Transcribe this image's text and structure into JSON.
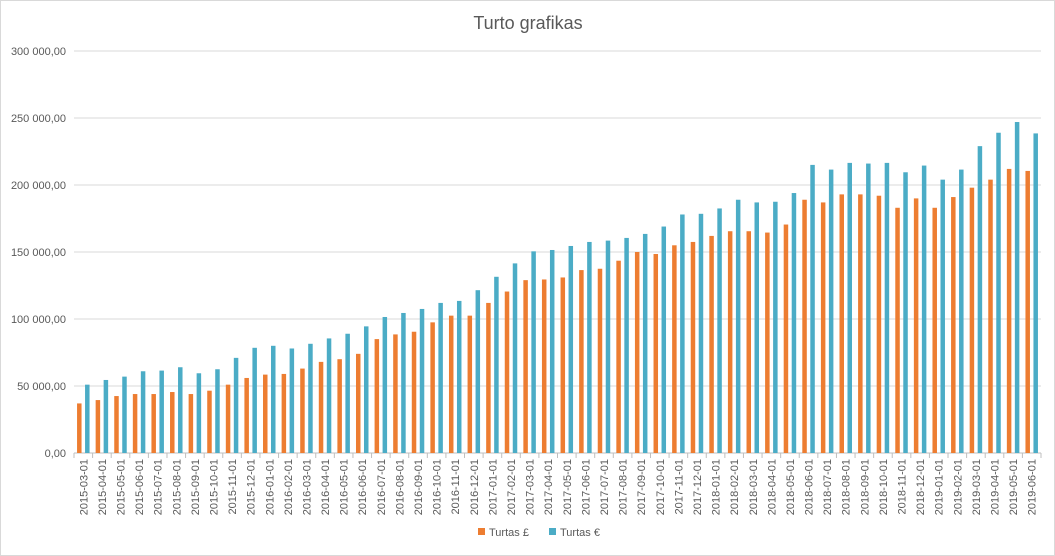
{
  "chart_data": {
    "type": "bar",
    "title": "Turto grafikas",
    "xlabel": "",
    "ylabel": "",
    "ylim": [
      0,
      300000
    ],
    "y_ticks": [
      0,
      50000,
      100000,
      150000,
      200000,
      250000,
      300000
    ],
    "y_tick_labels": [
      "0,00",
      "50 000,00",
      "100 000,00",
      "150 000,00",
      "200 000,00",
      "250 000,00",
      "300 000,00"
    ],
    "grid": true,
    "legend_position": "bottom",
    "categories": [
      "2015-03-01",
      "2015-04-01",
      "2015-05-01",
      "2015-06-01",
      "2015-07-01",
      "2015-08-01",
      "2015-09-01",
      "2015-10-01",
      "2015-11-01",
      "2015-12-01",
      "2016-01-01",
      "2016-02-01",
      "2016-03-01",
      "2016-04-01",
      "2016-05-01",
      "2016-06-01",
      "2016-07-01",
      "2016-08-01",
      "2016-09-01",
      "2016-10-01",
      "2016-11-01",
      "2016-12-01",
      "2017-01-01",
      "2017-02-01",
      "2017-03-01",
      "2017-04-01",
      "2017-05-01",
      "2017-06-01",
      "2017-07-01",
      "2017-08-01",
      "2017-09-01",
      "2017-10-01",
      "2017-11-01",
      "2017-12-01",
      "2018-01-01",
      "2018-02-01",
      "2018-03-01",
      "2018-04-01",
      "2018-05-01",
      "2018-06-01",
      "2018-07-01",
      "2018-08-01",
      "2018-09-01",
      "2018-10-01",
      "2018-11-01",
      "2018-12-01",
      "2019-01-01",
      "2019-02-01",
      "2019-03-01",
      "2019-04-01",
      "2019-05-01",
      "2019-06-01"
    ],
    "series": [
      {
        "name": "Turtas £",
        "color": "#ED7D31",
        "values": [
          37000,
          39500,
          42500,
          44000,
          44000,
          45500,
          44000,
          46500,
          51000,
          56000,
          58500,
          59000,
          63000,
          68000,
          70000,
          74000,
          85000,
          88500,
          90500,
          97500,
          102500,
          102500,
          112000,
          120500,
          129000,
          129500,
          131000,
          136500,
          137500,
          143500,
          150000,
          148500,
          155000,
          157500,
          162000,
          165500,
          165500,
          164500,
          170500,
          189000,
          187000,
          193000,
          193000,
          192000,
          183000,
          190000,
          183000,
          191000,
          198000,
          204000,
          212000,
          210500
        ]
      },
      {
        "name": "Turtas €",
        "color": "#4BACC6",
        "values": [
          51000,
          54500,
          57000,
          61000,
          61500,
          64000,
          59500,
          62500,
          71000,
          78500,
          80000,
          78000,
          81500,
          85500,
          89000,
          94500,
          101500,
          104500,
          107500,
          112000,
          113500,
          121500,
          131500,
          141500,
          150500,
          151500,
          154500,
          157500,
          158500,
          160500,
          163500,
          169000,
          178000,
          178500,
          182500,
          189000,
          187000,
          187500,
          194000,
          215000,
          211500,
          216500,
          216000,
          216500,
          209500,
          214500,
          204000,
          211500,
          229000,
          239000,
          247000,
          238500
        ]
      }
    ]
  }
}
